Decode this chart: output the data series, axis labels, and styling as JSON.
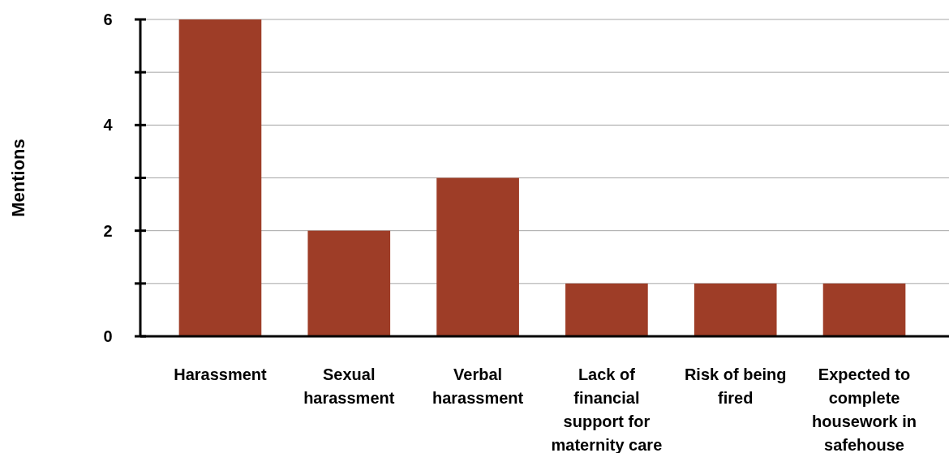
{
  "chart_data": {
    "type": "bar",
    "ylabel": "Mentions",
    "categories": [
      "Harassment",
      "Sexual harassment",
      "Verbal harassment",
      "Lack of financial support for maternity care",
      "Risk of being fired",
      "Expected to complete housework in safehouse"
    ],
    "values": [
      6,
      2,
      3,
      1,
      1,
      1
    ],
    "color": "#9e3d27",
    "ylim": [
      0,
      6
    ],
    "yticks": [
      0,
      {
        "value": 1,
        "label": null
      },
      2,
      {
        "value": 3,
        "label": null
      },
      4,
      {
        "value": 5,
        "label": null
      },
      6
    ],
    "grid": "y"
  }
}
